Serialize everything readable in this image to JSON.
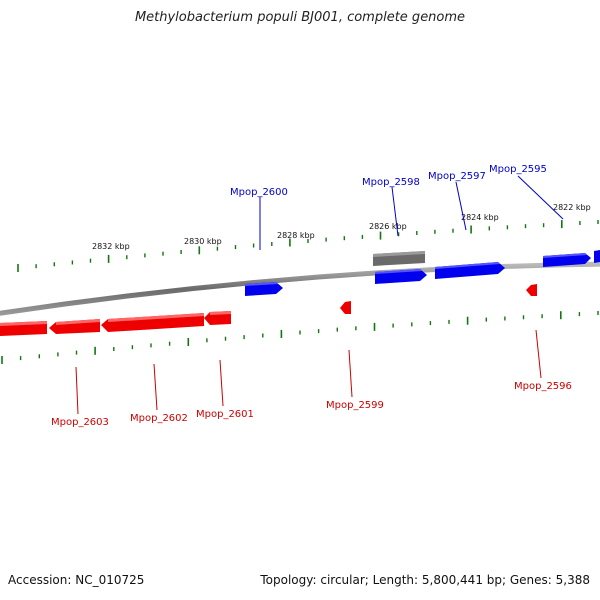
{
  "title": "Methylobacterium populi BJ001, complete genome",
  "footer": {
    "accession": "Accession: NC_010725",
    "summary": "Topology: circular; Length: 5,800,441 bp; Genes: 5,388"
  },
  "colors": {
    "forward_gene": "#0000ee",
    "reverse_gene": "#ee0000",
    "other_feature": "#666666",
    "backbone": "#888888",
    "tick": "#117711",
    "label_forward": "#0000cc",
    "label_reverse": "#cc0000"
  },
  "scale_labels": [
    "2822 kbp",
    "2824 kbp",
    "2826 kbp",
    "2828 kbp",
    "2830 kbp",
    "2832 kbp"
  ],
  "genes_forward": [
    {
      "name": "Mpop_2595",
      "strand": "+",
      "color": "blue"
    },
    {
      "name": "Mpop_2597",
      "strand": "+",
      "color": "blue"
    },
    {
      "name": "Mpop_2598",
      "strand": "+",
      "color": "gray"
    },
    {
      "name": "Mpop_2600",
      "strand": "+",
      "color": "blue"
    }
  ],
  "genes_reverse": [
    {
      "name": "Mpop_2596",
      "strand": "-",
      "color": "red"
    },
    {
      "name": "Mpop_2599",
      "strand": "-",
      "color": "red"
    },
    {
      "name": "Mpop_2601",
      "strand": "-",
      "color": "red"
    },
    {
      "name": "Mpop_2602",
      "strand": "-",
      "color": "red"
    },
    {
      "name": "Mpop_2603",
      "strand": "-",
      "color": "red"
    }
  ]
}
